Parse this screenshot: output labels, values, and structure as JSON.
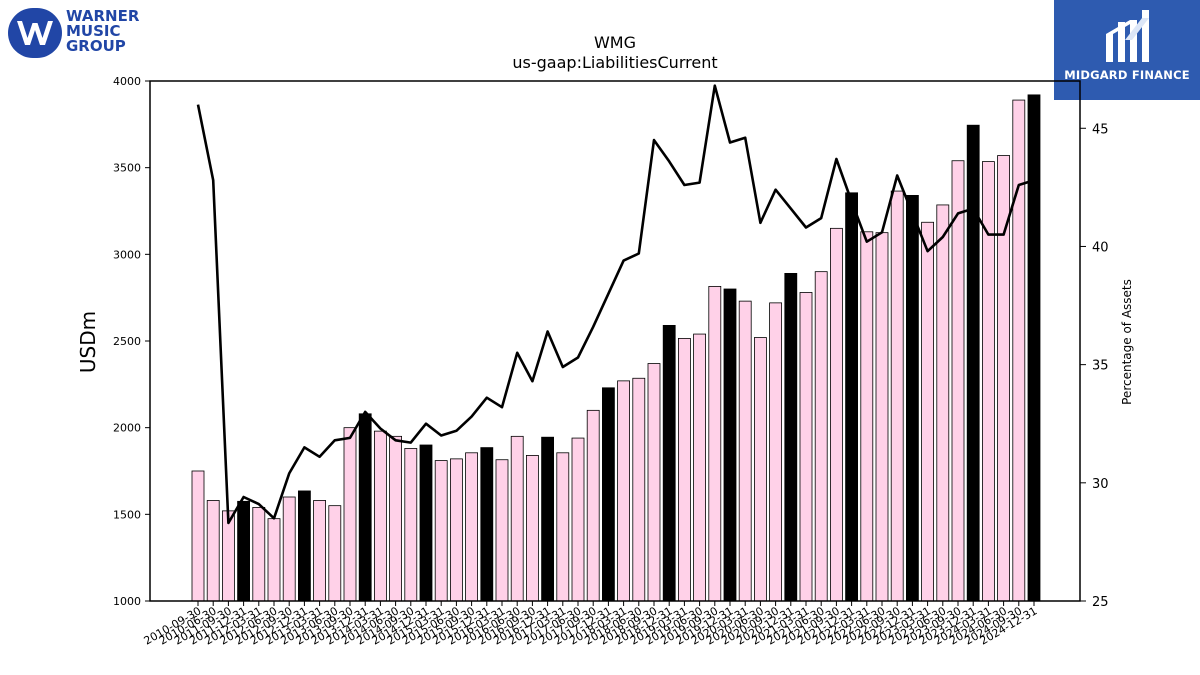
{
  "brand": {
    "left_logo_lines": [
      "WARNER",
      "MUSIC",
      "GROUP"
    ],
    "right_logo_text": "MIDGARD FINANCE",
    "brand_color": "#2146a6"
  },
  "chart_data": {
    "type": "bar",
    "title": "WMG",
    "subtitle": "us-gaap:LiabilitiesCurrent",
    "ylabel": "USDm",
    "y2label": "Percentage of Assets",
    "ylim": [
      1000,
      4000
    ],
    "y2lim": [
      25,
      47
    ],
    "yticks": [
      1000,
      1500,
      2000,
      2500,
      3000,
      3500,
      4000
    ],
    "y2ticks": [
      25,
      30,
      35,
      40,
      45
    ],
    "grid": false,
    "colors": {
      "bar": "#ffd1e8",
      "bar_highlight": "#000000",
      "bar_edge": "#000000",
      "line": "#000000"
    },
    "categories": [
      "2010-09-30",
      "2010-06-30",
      "2011-09-30",
      "2011-12-31",
      "2012-03-31",
      "2012-06-30",
      "2012-09-30",
      "2012-12-31",
      "2013-03-31",
      "2013-06-30",
      "2013-09-30",
      "2013-12-31",
      "2014-03-31",
      "2014-06-30",
      "2014-09-30",
      "2014-12-31",
      "2015-03-31",
      "2015-06-30",
      "2015-09-30",
      "2015-12-31",
      "2016-03-31",
      "2016-06-30",
      "2016-09-30",
      "2016-12-31",
      "2017-03-31",
      "2017-06-30",
      "2017-09-30",
      "2017-12-31",
      "2018-03-31",
      "2018-06-30",
      "2018-09-30",
      "2018-12-31",
      "2019-03-31",
      "2019-06-30",
      "2019-09-30",
      "2019-12-31",
      "2020-03-31",
      "2020-06-30",
      "2020-09-30",
      "2020-12-31",
      "2021-03-31",
      "2021-06-30",
      "2021-09-30",
      "2021-12-31",
      "2022-03-31",
      "2022-06-30",
      "2022-09-30",
      "2022-12-31",
      "2023-03-31",
      "2023-06-30",
      "2023-09-30",
      "2023-12-31",
      "2024-03-31",
      "2024-06-30",
      "2024-09-30",
      "2024-12-31"
    ],
    "series": [
      {
        "kind": "bar",
        "values": [
          1750,
          1580,
          1520,
          1575,
          1540,
          1475,
          1600,
          1635,
          1580,
          1550,
          2000,
          2080,
          1980,
          1950,
          1880,
          1900,
          1810,
          1820,
          1855,
          1885,
          1815,
          1950,
          1840,
          1945,
          1855,
          1940,
          2100,
          2230,
          2270,
          2285,
          2370,
          2590,
          2515,
          2540,
          2815,
          2800,
          2730,
          2520,
          2720,
          2890,
          2780,
          2900,
          3150,
          3355,
          3130,
          3125,
          3365,
          3340,
          3185,
          3285,
          3540,
          3745,
          3535,
          3570,
          3890,
          3920
        ],
        "highlight": [
          false,
          false,
          false,
          true,
          false,
          false,
          false,
          true,
          false,
          false,
          false,
          true,
          false,
          false,
          false,
          true,
          false,
          false,
          false,
          true,
          false,
          false,
          false,
          true,
          false,
          false,
          false,
          true,
          false,
          false,
          false,
          true,
          false,
          false,
          false,
          true,
          false,
          false,
          false,
          true,
          false,
          false,
          false,
          true,
          false,
          false,
          false,
          true,
          false,
          false,
          false,
          true,
          false,
          false,
          false,
          true
        ]
      },
      {
        "kind": "line",
        "axis": "right",
        "values": [
          46.0,
          42.8,
          28.3,
          29.4,
          29.1,
          28.5,
          30.4,
          31.5,
          31.1,
          31.8,
          31.9,
          33.0,
          32.3,
          31.8,
          31.7,
          32.5,
          32.0,
          32.2,
          32.8,
          33.6,
          33.2,
          35.5,
          34.3,
          36.4,
          34.9,
          35.3,
          36.6,
          38.0,
          39.4,
          39.7,
          44.5,
          43.6,
          42.6,
          42.7,
          46.8,
          44.4,
          44.6,
          41.0,
          42.4,
          41.6,
          40.8,
          41.2,
          43.7,
          41.9,
          40.2,
          40.6,
          43.0,
          41.4,
          39.8,
          40.4,
          41.4,
          41.6,
          40.5,
          40.5,
          42.6,
          42.8
        ]
      }
    ]
  }
}
